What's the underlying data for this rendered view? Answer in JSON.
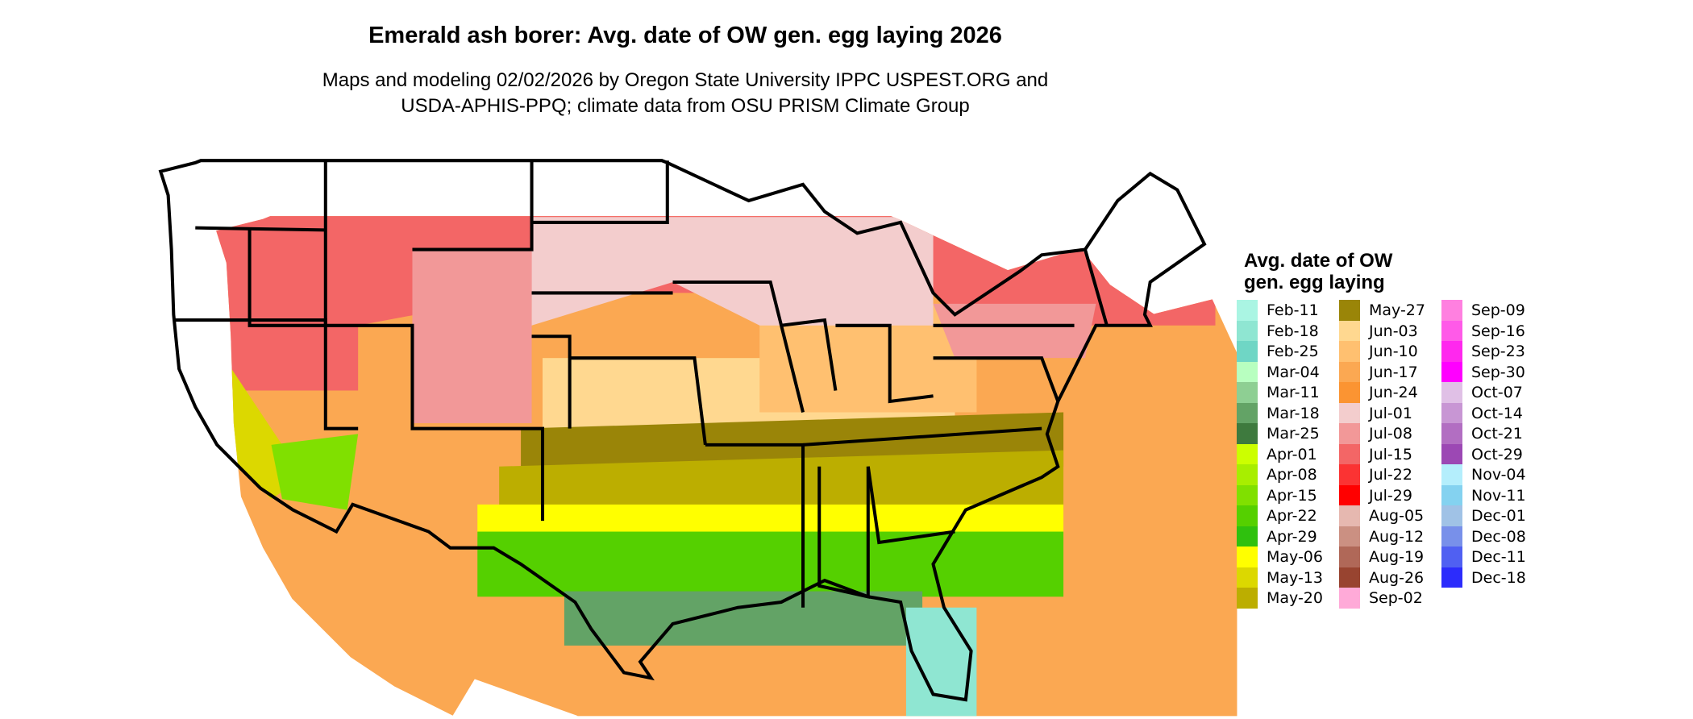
{
  "title": "Emerald ash borer: Avg. date of OW gen. egg laying 2026",
  "subtitle_line1": "Maps and modeling 02/02/2026 by Oregon State University IPPC USPEST.ORG and",
  "subtitle_line2": "USDA-APHIS-PPQ; climate data from OSU PRISM Climate Group",
  "legend": {
    "title_line1": "Avg. date of OW",
    "title_line2": "gen. egg laying",
    "columns": [
      [
        {
          "label": "Feb-11",
          "color": "#aaf5e3"
        },
        {
          "label": "Feb-18",
          "color": "#8fe6d2"
        },
        {
          "label": "Feb-25",
          "color": "#6fd6c5"
        },
        {
          "label": "Mar-04",
          "color": "#b8ffc0"
        },
        {
          "label": "Mar-11",
          "color": "#8ecf93"
        },
        {
          "label": "Mar-18",
          "color": "#63a366"
        },
        {
          "label": "Mar-25",
          "color": "#3e7a3e"
        },
        {
          "label": "Apr-01",
          "color": "#ccff00"
        },
        {
          "label": "Apr-08",
          "color": "#a8ee00"
        },
        {
          "label": "Apr-15",
          "color": "#80e000"
        },
        {
          "label": "Apr-22",
          "color": "#55d000"
        },
        {
          "label": "Apr-29",
          "color": "#2fc10e"
        },
        {
          "label": "May-06",
          "color": "#ffff00"
        },
        {
          "label": "May-13",
          "color": "#dcd800"
        },
        {
          "label": "May-20",
          "color": "#bcae00"
        }
      ],
      [
        {
          "label": "May-27",
          "color": "#9a8508"
        },
        {
          "label": "Jun-03",
          "color": "#ffd890"
        },
        {
          "label": "Jun-10",
          "color": "#ffc070"
        },
        {
          "label": "Jun-17",
          "color": "#fba852"
        },
        {
          "label": "Jun-24",
          "color": "#fb9432"
        },
        {
          "label": "Jul-01",
          "color": "#f3cdcd"
        },
        {
          "label": "Jul-08",
          "color": "#f29898"
        },
        {
          "label": "Jul-15",
          "color": "#f36666"
        },
        {
          "label": "Jul-22",
          "color": "#fb3333"
        },
        {
          "label": "Jul-29",
          "color": "#ff0000"
        },
        {
          "label": "Aug-05",
          "color": "#e6b8b0"
        },
        {
          "label": "Aug-12",
          "color": "#cb9082"
        },
        {
          "label": "Aug-19",
          "color": "#b06858"
        },
        {
          "label": "Aug-26",
          "color": "#984430"
        },
        {
          "label": "Sep-02",
          "color": "#ffaad8"
        }
      ],
      [
        {
          "label": "Sep-09",
          "color": "#ff80e0"
        },
        {
          "label": "Sep-16",
          "color": "#ff5ae8"
        },
        {
          "label": "Sep-23",
          "color": "#ff28ee"
        },
        {
          "label": "Sep-30",
          "color": "#ff00ff"
        },
        {
          "label": "Oct-07",
          "color": "#e0c0e6"
        },
        {
          "label": "Oct-14",
          "color": "#c896d4"
        },
        {
          "label": "Oct-21",
          "color": "#b26ec2"
        },
        {
          "label": "Oct-29",
          "color": "#9c48b4"
        },
        {
          "label": "Nov-04",
          "color": "#b4eefc"
        },
        {
          "label": "Nov-11",
          "color": "#84d2f0"
        },
        {
          "label": "Dec-01",
          "color": "#a0c2e6"
        },
        {
          "label": "Dec-08",
          "color": "#7890ea"
        },
        {
          "label": "Dec-11",
          "color": "#5060f2"
        },
        {
          "label": "Dec-18",
          "color": "#2c2cfc"
        }
      ]
    ]
  }
}
